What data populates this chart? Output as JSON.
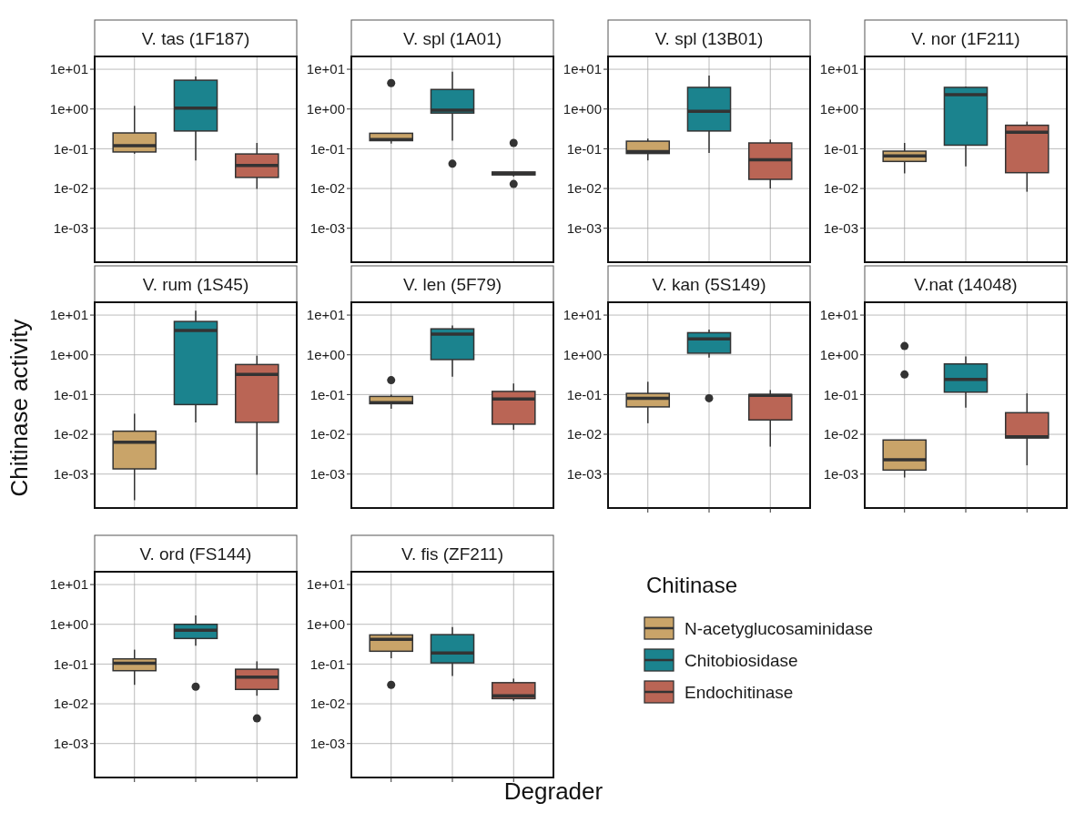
{
  "chart_data": [
    {
      "type": "box",
      "title": "V. tas (1F187)",
      "categories": [
        null,
        null,
        null
      ],
      "log": true,
      "grid": true,
      "ylim": [
        0.00014,
        21
      ],
      "yticks": [
        {
          "value": 10,
          "label": "1e+01"
        },
        {
          "value": 1,
          "label": "1e+00"
        },
        {
          "value": 0.1,
          "label": "1e-01"
        },
        {
          "value": 0.01,
          "label": "1e-02"
        },
        {
          "value": 0.001,
          "label": "1e-03"
        }
      ],
      "series": [
        {
          "color": "#c9a469",
          "boxes": [
            {
              "low": 0.075,
              "q1": 0.083,
              "median": 0.12,
              "q3": 0.25,
              "high": 1.2
            },
            null,
            null
          ]
        },
        {
          "color": "#1b838e",
          "boxes": [
            null,
            {
              "low": 0.051,
              "q1": 0.28,
              "median": 1.05,
              "q3": 5.3,
              "high": 6.6
            },
            null
          ]
        },
        {
          "color": "#ba6555",
          "boxes": [
            null,
            null,
            {
              "low": 0.0098,
              "q1": 0.019,
              "median": 0.038,
              "q3": 0.074,
              "high": 0.14
            }
          ]
        }
      ]
    },
    {
      "type": "box",
      "title": "V. spl (1A01)",
      "categories": [
        null,
        null,
        null
      ],
      "log": true,
      "grid": true,
      "ylim": [
        0.00014,
        21
      ],
      "yticks": [
        {
          "value": 10,
          "label": "1e+01"
        },
        {
          "value": 1,
          "label": "1e+00"
        },
        {
          "value": 0.1,
          "label": "1e-01"
        },
        {
          "value": 0.01,
          "label": "1e-02"
        },
        {
          "value": 0.001,
          "label": "1e-03"
        }
      ],
      "series": [
        {
          "color": "#c9a469",
          "boxes": [
            {
              "low": 0.135,
              "q1": 0.16,
              "median": 0.17,
              "q3": 0.245,
              "high": 0.245,
              "outliers": [
                4.5
              ]
            },
            null,
            null
          ]
        },
        {
          "color": "#1b838e",
          "boxes": [
            null,
            {
              "low": 0.16,
              "q1": 0.79,
              "median": 0.93,
              "q3": 3.1,
              "high": 8.7,
              "outliers": [
                0.042
              ]
            },
            null
          ]
        },
        {
          "color": "#ba6555",
          "boxes": [
            null,
            null,
            {
              "low": 0.02,
              "q1": 0.022,
              "median": 0.024,
              "q3": 0.026,
              "high": 0.026,
              "outliers": [
                0.14,
                0.013
              ]
            }
          ]
        }
      ]
    },
    {
      "type": "box",
      "title": "V. spl (13B01)",
      "categories": [
        null,
        null,
        null
      ],
      "log": true,
      "grid": true,
      "ylim": [
        0.00014,
        21
      ],
      "yticks": [
        {
          "value": 10,
          "label": "1e+01"
        },
        {
          "value": 1,
          "label": "1e+00"
        },
        {
          "value": 0.1,
          "label": "1e-01"
        },
        {
          "value": 0.01,
          "label": "1e-02"
        },
        {
          "value": 0.001,
          "label": "1e-03"
        }
      ],
      "series": [
        {
          "color": "#c9a469",
          "boxes": [
            {
              "low": 0.051,
              "q1": 0.076,
              "median": 0.085,
              "q3": 0.155,
              "high": 0.18
            },
            null,
            null
          ]
        },
        {
          "color": "#1b838e",
          "boxes": [
            null,
            {
              "low": 0.078,
              "q1": 0.28,
              "median": 0.87,
              "q3": 3.5,
              "high": 6.9
            },
            null
          ]
        },
        {
          "color": "#ba6555",
          "boxes": [
            null,
            null,
            {
              "low": 0.01,
              "q1": 0.017,
              "median": 0.053,
              "q3": 0.14,
              "high": 0.17
            }
          ]
        }
      ]
    },
    {
      "type": "box",
      "title": "V. nor (1F211)",
      "categories": [
        null,
        null,
        null
      ],
      "log": true,
      "grid": true,
      "ylim": [
        0.00014,
        21
      ],
      "yticks": [
        {
          "value": 10,
          "label": "1e+01"
        },
        {
          "value": 1,
          "label": "1e+00"
        },
        {
          "value": 0.1,
          "label": "1e-01"
        },
        {
          "value": 0.01,
          "label": "1e-02"
        },
        {
          "value": 0.001,
          "label": "1e-03"
        }
      ],
      "series": [
        {
          "color": "#c9a469",
          "boxes": [
            {
              "low": 0.024,
              "q1": 0.048,
              "median": 0.066,
              "q3": 0.087,
              "high": 0.14
            },
            null,
            null
          ]
        },
        {
          "color": "#1b838e",
          "boxes": [
            null,
            {
              "low": 0.036,
              "q1": 0.123,
              "median": 2.3,
              "q3": 3.5,
              "high": 3.7
            },
            null
          ]
        },
        {
          "color": "#ba6555",
          "boxes": [
            null,
            null,
            {
              "low": 0.0083,
              "q1": 0.025,
              "median": 0.26,
              "q3": 0.39,
              "high": 0.48
            }
          ]
        }
      ]
    },
    {
      "type": "box",
      "title": "V. rum (1S45)",
      "ylabel": "Chitinase activity",
      "categories": [
        null,
        null,
        null
      ],
      "log": true,
      "grid": true,
      "ylim": [
        0.00014,
        21
      ],
      "yticks": [
        {
          "value": 10,
          "label": "1e+01"
        },
        {
          "value": 1,
          "label": "1e+00"
        },
        {
          "value": 0.1,
          "label": "1e-01"
        },
        {
          "value": 0.01,
          "label": "1e-02"
        },
        {
          "value": 0.001,
          "label": "1e-03"
        }
      ],
      "series": [
        {
          "color": "#c9a469",
          "boxes": [
            {
              "low": 0.00022,
              "q1": 0.00135,
              "median": 0.0063,
              "q3": 0.012,
              "high": 0.033
            },
            null,
            null
          ]
        },
        {
          "color": "#1b838e",
          "boxes": [
            null,
            {
              "low": 0.02,
              "q1": 0.056,
              "median": 4.1,
              "q3": 6.9,
              "high": 12.9
            },
            null
          ]
        },
        {
          "color": "#ba6555",
          "boxes": [
            null,
            null,
            {
              "low": 0.00096,
              "q1": 0.02,
              "median": 0.32,
              "q3": 0.57,
              "high": 0.95
            }
          ]
        }
      ]
    },
    {
      "type": "box",
      "title": "V. len (5F79)",
      "categories": [
        null,
        null,
        null
      ],
      "log": true,
      "grid": true,
      "ylim": [
        0.00014,
        21
      ],
      "yticks": [
        {
          "value": 10,
          "label": "1e+01"
        },
        {
          "value": 1,
          "label": "1e+00"
        },
        {
          "value": 0.1,
          "label": "1e-01"
        },
        {
          "value": 0.01,
          "label": "1e-02"
        },
        {
          "value": 0.001,
          "label": "1e-03"
        }
      ],
      "series": [
        {
          "color": "#c9a469",
          "boxes": [
            {
              "low": 0.044,
              "q1": 0.059,
              "median": 0.063,
              "q3": 0.09,
              "high": 0.1,
              "outliers": [
                0.23
              ]
            },
            null,
            null
          ]
        },
        {
          "color": "#1b838e",
          "boxes": [
            null,
            {
              "low": 0.28,
              "q1": 0.76,
              "median": 3.3,
              "q3": 4.5,
              "high": 5.5
            },
            null
          ]
        },
        {
          "color": "#ba6555",
          "boxes": [
            null,
            null,
            {
              "low": 0.013,
              "q1": 0.018,
              "median": 0.077,
              "q3": 0.12,
              "high": 0.19
            }
          ]
        }
      ]
    },
    {
      "type": "box",
      "title": "V. kan (5S149)",
      "categories": [
        null,
        null,
        null
      ],
      "log": true,
      "grid": true,
      "ylim": [
        0.00014,
        21
      ],
      "yticks": [
        {
          "value": 10,
          "label": "1e+01"
        },
        {
          "value": 1,
          "label": "1e+00"
        },
        {
          "value": 0.1,
          "label": "1e-01"
        },
        {
          "value": 0.01,
          "label": "1e-02"
        },
        {
          "value": 0.001,
          "label": "1e-03"
        }
      ],
      "series": [
        {
          "color": "#c9a469",
          "boxes": [
            {
              "low": 0.019,
              "q1": 0.049,
              "median": 0.081,
              "q3": 0.107,
              "high": 0.21
            },
            null,
            null
          ]
        },
        {
          "color": "#1b838e",
          "boxes": [
            null,
            {
              "low": 0.85,
              "q1": 1.1,
              "median": 2.5,
              "q3": 3.6,
              "high": 4.3,
              "outliers": [
                0.081
              ]
            },
            null
          ]
        },
        {
          "color": "#ba6555",
          "boxes": [
            null,
            null,
            {
              "low": 0.0049,
              "q1": 0.023,
              "median": 0.095,
              "q3": 0.1,
              "high": 0.13
            }
          ]
        }
      ]
    },
    {
      "type": "box",
      "title": "V.nat (14048)",
      "categories": [
        null,
        null,
        null
      ],
      "log": true,
      "grid": true,
      "ylim": [
        0.00014,
        21
      ],
      "yticks": [
        {
          "value": 10,
          "label": "1e+01"
        },
        {
          "value": 1,
          "label": "1e+00"
        },
        {
          "value": 0.1,
          "label": "1e-01"
        },
        {
          "value": 0.01,
          "label": "1e-02"
        },
        {
          "value": 0.001,
          "label": "1e-03"
        }
      ],
      "series": [
        {
          "color": "#c9a469",
          "boxes": [
            {
              "low": 0.00082,
              "q1": 0.00126,
              "median": 0.0023,
              "q3": 0.0072,
              "high": 0.0072,
              "outliers": [
                1.66,
                0.32
              ]
            },
            null,
            null
          ]
        },
        {
          "color": "#1b838e",
          "boxes": [
            null,
            {
              "low": 0.047,
              "q1": 0.115,
              "median": 0.24,
              "q3": 0.59,
              "high": 0.91
            },
            null
          ]
        },
        {
          "color": "#ba6555",
          "boxes": [
            null,
            null,
            {
              "low": 0.00166,
              "q1": 0.0081,
              "median": 0.0087,
              "q3": 0.035,
              "high": 0.107
            }
          ]
        }
      ]
    },
    {
      "type": "box",
      "title": "V. ord (FS144)",
      "categories": [
        null,
        null,
        null
      ],
      "log": true,
      "grid": true,
      "ylim": [
        0.00014,
        21
      ],
      "yticks": [
        {
          "value": 10,
          "label": "1e+01"
        },
        {
          "value": 1,
          "label": "1e+00"
        },
        {
          "value": 0.1,
          "label": "1e-01"
        },
        {
          "value": 0.01,
          "label": "1e-02"
        },
        {
          "value": 0.001,
          "label": "1e-03"
        }
      ],
      "series": [
        {
          "color": "#c9a469",
          "boxes": [
            {
              "low": 0.03,
              "q1": 0.068,
              "median": 0.105,
              "q3": 0.135,
              "high": 0.23
            },
            null,
            null
          ]
        },
        {
          "color": "#1b838e",
          "boxes": [
            null,
            {
              "low": 0.29,
              "q1": 0.44,
              "median": 0.71,
              "q3": 1.0,
              "high": 1.66,
              "outliers": [
                0.027
              ]
            },
            null
          ]
        },
        {
          "color": "#ba6555",
          "boxes": [
            null,
            null,
            {
              "low": 0.016,
              "q1": 0.023,
              "median": 0.047,
              "q3": 0.074,
              "high": 0.117,
              "outliers": [
                0.0043
              ]
            }
          ]
        }
      ]
    },
    {
      "type": "box",
      "title": "V. fis (ZF211)",
      "xlabel": "Degrader",
      "legend": "right",
      "legend_title": "Chitinase",
      "categories": [
        null,
        null,
        null
      ],
      "log": true,
      "grid": true,
      "ylim": [
        0.00014,
        21
      ],
      "yticks": [
        {
          "value": 10,
          "label": "1e+01"
        },
        {
          "value": 1,
          "label": "1e+00"
        },
        {
          "value": 0.1,
          "label": "1e-01"
        },
        {
          "value": 0.01,
          "label": "1e-02"
        },
        {
          "value": 0.001,
          "label": "1e-03"
        }
      ],
      "series": [
        {
          "name": "N-acetyglucosaminidase",
          "color": "#c9a469",
          "boxes": [
            {
              "low": 0.14,
              "q1": 0.21,
              "median": 0.42,
              "q3": 0.54,
              "high": 0.63,
              "outliers": [
                0.03
              ]
            },
            null,
            null
          ]
        },
        {
          "name": "Chitobiosidase",
          "color": "#1b838e",
          "boxes": [
            null,
            {
              "low": 0.05,
              "q1": 0.107,
              "median": 0.19,
              "q3": 0.55,
              "high": 0.85
            },
            null
          ]
        },
        {
          "name": "Endochitinase",
          "color": "#ba6555",
          "boxes": [
            null,
            null,
            {
              "low": 0.012,
              "q1": 0.0135,
              "median": 0.016,
              "q3": 0.034,
              "high": 0.043
            }
          ]
        }
      ]
    }
  ]
}
